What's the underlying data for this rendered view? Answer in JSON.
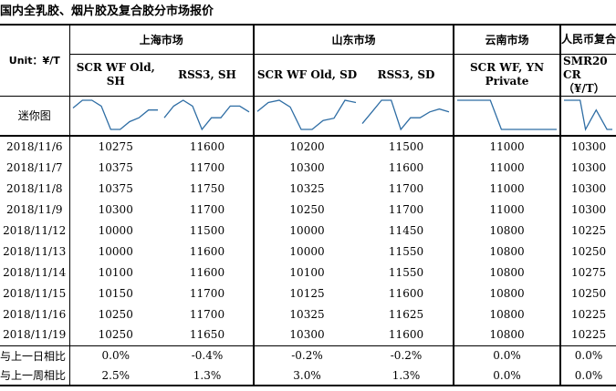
{
  "title": "国内全乳胶、烟片胶及复合胶分市场报价",
  "unit_label": "Unit：¥/T",
  "sparkline_label": "迷你图",
  "markets": [
    {
      "name": "上海市场",
      "span": 2
    },
    {
      "name": "山东市场",
      "span": 2
    },
    {
      "name": "云南市场",
      "span": 1
    },
    {
      "name": "人民币复合",
      "span": 1
    }
  ],
  "products": [
    "SCR WF Old, SH",
    "RSS3, SH",
    "SCR WF Old, SD",
    "RSS3, SD",
    "SCR WF, YN Private",
    "SMR20 CR（¥/T）"
  ],
  "rows": [
    {
      "date": "2018/11/6",
      "values": [
        "10275",
        "11600",
        "10200",
        "11500",
        "11000",
        "10300"
      ]
    },
    {
      "date": "2018/11/7",
      "values": [
        "10375",
        "11700",
        "10300",
        "11600",
        "11000",
        "10300"
      ]
    },
    {
      "date": "2018/11/8",
      "values": [
        "10375",
        "11750",
        "10325",
        "11700",
        "11000",
        "10300"
      ]
    },
    {
      "date": "2018/11/9",
      "values": [
        "10300",
        "11700",
        "10250",
        "11700",
        "11000",
        "10300"
      ]
    },
    {
      "date": "2018/11/12",
      "values": [
        "10000",
        "11500",
        "10000",
        "11450",
        "10800",
        "10225"
      ]
    },
    {
      "date": "2018/11/13",
      "values": [
        "10000",
        "11600",
        "10000",
        "11550",
        "10800",
        "10250"
      ]
    },
    {
      "date": "2018/11/14",
      "values": [
        "10100",
        "11600",
        "10100",
        "11550",
        "10800",
        "10275"
      ]
    },
    {
      "date": "2018/11/15",
      "values": [
        "10150",
        "11700",
        "10125",
        "11600",
        "10800",
        "10250"
      ]
    },
    {
      "date": "2018/11/16",
      "values": [
        "10250",
        "11700",
        "10325",
        "11625",
        "10800",
        "10225"
      ]
    },
    {
      "date": "2018/11/19",
      "values": [
        "10250",
        "11650",
        "10300",
        "11600",
        "10800",
        "10225"
      ]
    }
  ],
  "comparisons": [
    {
      "label": "与上一日相比",
      "values": [
        "0.0%",
        "-0.4%",
        "-0.2%",
        "-0.2%",
        "0.0%",
        "0.0%"
      ]
    },
    {
      "label": "与上一周相比",
      "values": [
        "2.5%",
        "1.3%",
        "3.0%",
        "1.3%",
        "0.0%",
        "0.0%"
      ]
    }
  ],
  "colors": {
    "sparkline": "#2e6da4",
    "border": "#000000"
  }
}
